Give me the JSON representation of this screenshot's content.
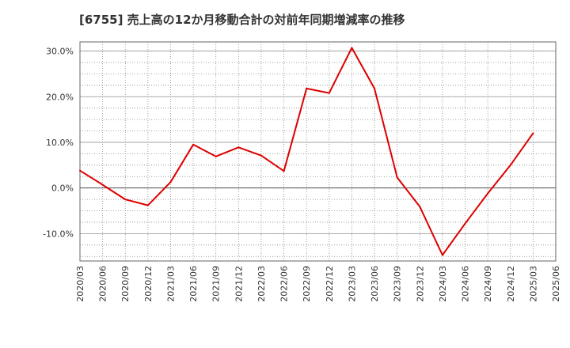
{
  "chart_data": {
    "type": "line",
    "title": "[6755]  売上高の12か月移動合計の対前年同期増減率の推移",
    "xlabel": "",
    "ylabel": "",
    "ylim": [
      -16,
      32
    ],
    "yticks": [
      -10,
      0,
      10,
      20,
      30
    ],
    "ytick_labels": [
      "-10.0%",
      "0.0%",
      "10.0%",
      "20.0%",
      "30.0%"
    ],
    "categories": [
      "2020/03",
      "2020/06",
      "2020/09",
      "2020/12",
      "2021/03",
      "2021/06",
      "2021/09",
      "2021/12",
      "2022/03",
      "2022/06",
      "2022/09",
      "2022/12",
      "2023/03",
      "2023/06",
      "2023/09",
      "2023/12",
      "2024/03",
      "2024/06",
      "2024/09",
      "2024/12",
      "2025/03",
      "2025/06"
    ],
    "series": [
      {
        "name": "増減率",
        "color": "#dd0000",
        "values": [
          3.8,
          0.7,
          -2.5,
          -3.8,
          1.3,
          9.5,
          6.9,
          8.9,
          7.1,
          3.7,
          21.8,
          20.8,
          30.7,
          21.8,
          2.3,
          -4.1,
          -14.7,
          -7.8,
          -1.2,
          5.0,
          12.0,
          null
        ]
      }
    ],
    "grid": true,
    "legend": "none"
  }
}
